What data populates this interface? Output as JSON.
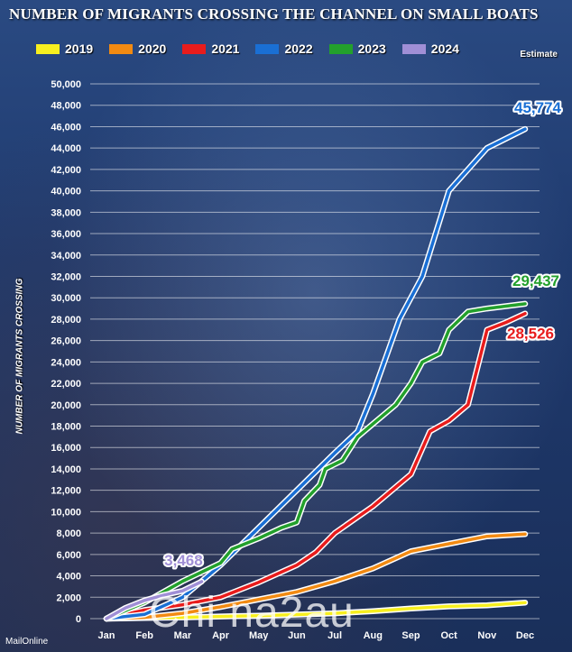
{
  "chart_data": {
    "type": "line",
    "title": "NUMBER OF MIGRANTS CROSSING THE CHANNEL ON SMALL BOATS",
    "ylabel": "NUMBER OF MIGRANTS CROSSING",
    "xlabel": "",
    "ylim": [
      0,
      50000
    ],
    "yticks": [
      "0",
      "2,000",
      "4,000",
      "6,000",
      "8,000",
      "10,000",
      "12,000",
      "14,000",
      "16,000",
      "18,000",
      "20,000",
      "22,000",
      "24,000",
      "26,000",
      "28,000",
      "30,000",
      "32,000",
      "34,000",
      "36,000",
      "38,000",
      "40,000",
      "42,000",
      "44,000",
      "46,000",
      "48,000",
      "50,000"
    ],
    "categories": [
      "Jan",
      "Feb",
      "Mar",
      "Apr",
      "May",
      "Jun",
      "Jul",
      "Aug",
      "Sep",
      "Oct",
      "Nov",
      "Dec"
    ],
    "legend_placement": "top",
    "estimate_note": "Estimate",
    "series": [
      {
        "name": "2019",
        "color": "#f7ef1f",
        "points": [
          [
            0,
            0
          ],
          [
            1,
            60
          ],
          [
            2,
            120
          ],
          [
            3,
            200
          ],
          [
            4,
            280
          ],
          [
            5,
            380
          ],
          [
            6,
            500
          ],
          [
            7,
            700
          ],
          [
            8,
            950
          ],
          [
            9,
            1150
          ],
          [
            10,
            1250
          ],
          [
            11,
            1500
          ]
        ]
      },
      {
        "name": "2020",
        "color": "#f28a12",
        "points": [
          [
            0,
            0
          ],
          [
            1,
            120
          ],
          [
            2,
            500
          ],
          [
            3,
            1100
          ],
          [
            4,
            1800
          ],
          [
            5,
            2500
          ],
          [
            6,
            3500
          ],
          [
            7,
            4700
          ],
          [
            8,
            6300
          ],
          [
            9,
            7000
          ],
          [
            10,
            7700
          ],
          [
            11,
            7900
          ]
        ]
      },
      {
        "name": "2021",
        "color": "#e81c1c",
        "points": [
          [
            0,
            0
          ],
          [
            1,
            800
          ],
          [
            2,
            1300
          ],
          [
            3,
            2000
          ],
          [
            4,
            3400
          ],
          [
            5,
            5000
          ],
          [
            5.5,
            6200
          ],
          [
            6,
            8000
          ],
          [
            7,
            10500
          ],
          [
            8,
            13500
          ],
          [
            8.5,
            17500
          ],
          [
            9,
            18500
          ],
          [
            9.5,
            20000
          ],
          [
            10,
            27000
          ],
          [
            10.5,
            27700
          ],
          [
            11,
            28526
          ]
        ]
      },
      {
        "name": "2022",
        "color": "#1a6fd4",
        "points": [
          [
            0,
            0
          ],
          [
            1,
            400
          ],
          [
            2,
            2000
          ],
          [
            3,
            5000
          ],
          [
            4,
            8500
          ],
          [
            5,
            12000
          ],
          [
            6,
            15500
          ],
          [
            6.6,
            17500
          ],
          [
            7,
            21000
          ],
          [
            7.7,
            28000
          ],
          [
            8.3,
            32000
          ],
          [
            9,
            40000
          ],
          [
            9.5,
            42000
          ],
          [
            10,
            44000
          ],
          [
            11,
            45774
          ]
        ]
      },
      {
        "name": "2023",
        "color": "#23a02c",
        "points": [
          [
            0,
            0
          ],
          [
            1,
            1500
          ],
          [
            2,
            3500
          ],
          [
            3,
            5200
          ],
          [
            3.3,
            6500
          ],
          [
            4,
            7500
          ],
          [
            4.6,
            8500
          ],
          [
            5,
            9000
          ],
          [
            5.2,
            11000
          ],
          [
            5.6,
            12500
          ],
          [
            5.75,
            14000
          ],
          [
            6.2,
            14800
          ],
          [
            6.6,
            17000
          ],
          [
            7,
            18200
          ],
          [
            7.6,
            20000
          ],
          [
            8,
            22000
          ],
          [
            8.3,
            24000
          ],
          [
            8.75,
            24800
          ],
          [
            9,
            27000
          ],
          [
            9.5,
            28700
          ],
          [
            10,
            29000
          ],
          [
            11,
            29437
          ]
        ]
      },
      {
        "name": "2024",
        "color": "#a08fd6",
        "points": [
          [
            0,
            0
          ],
          [
            0.5,
            1000
          ],
          [
            1,
            1700
          ],
          [
            1.5,
            2200
          ],
          [
            2,
            2600
          ],
          [
            2.5,
            3468
          ]
        ]
      }
    ],
    "annotations": [
      {
        "series": "2022",
        "text": "45,774"
      },
      {
        "series": "2023",
        "text": "29,437"
      },
      {
        "series": "2021",
        "text": "28,526"
      },
      {
        "series": "2024",
        "text": "3,468"
      }
    ],
    "source": "MailOnline"
  },
  "watermark": "Chi na2au"
}
